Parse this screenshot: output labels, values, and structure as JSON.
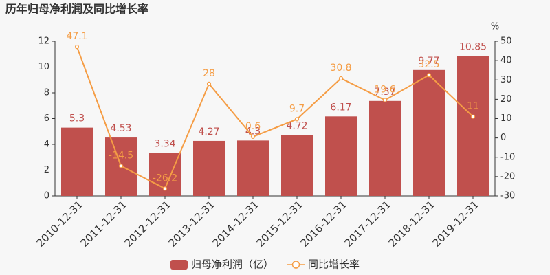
{
  "chart_data": {
    "type": "bar",
    "title": "历年归母净利润及同比增长率",
    "categories": [
      "2010-12-31",
      "2011-12-31",
      "2012-12-31",
      "2013-12-31",
      "2014-12-31",
      "2015-12-31",
      "2016-12-31",
      "2017-12-31",
      "2018-12-31",
      "2019-12-31"
    ],
    "series": [
      {
        "name": "归母净利润（亿）",
        "type": "bar",
        "color": "#c0504d",
        "values": [
          5.3,
          4.53,
          3.34,
          4.27,
          4.3,
          4.72,
          6.17,
          7.37,
          9.77,
          10.85
        ]
      },
      {
        "name": "同比增长率",
        "type": "line",
        "axis": "y2",
        "color": "#f59d45",
        "values": [
          47.1,
          -14.5,
          -26.2,
          28,
          0.6,
          9.7,
          30.8,
          19.6,
          32.5,
          11
        ]
      }
    ],
    "ylim": [
      0,
      12
    ],
    "yticks": [
      0,
      2,
      4,
      6,
      8,
      10,
      12
    ],
    "y2lim": [
      -30,
      50
    ],
    "y2ticks": [
      -30,
      -20,
      -10,
      0,
      10,
      20,
      30,
      40,
      50
    ],
    "y2label": "%",
    "grid": false,
    "legend": "bottom"
  }
}
